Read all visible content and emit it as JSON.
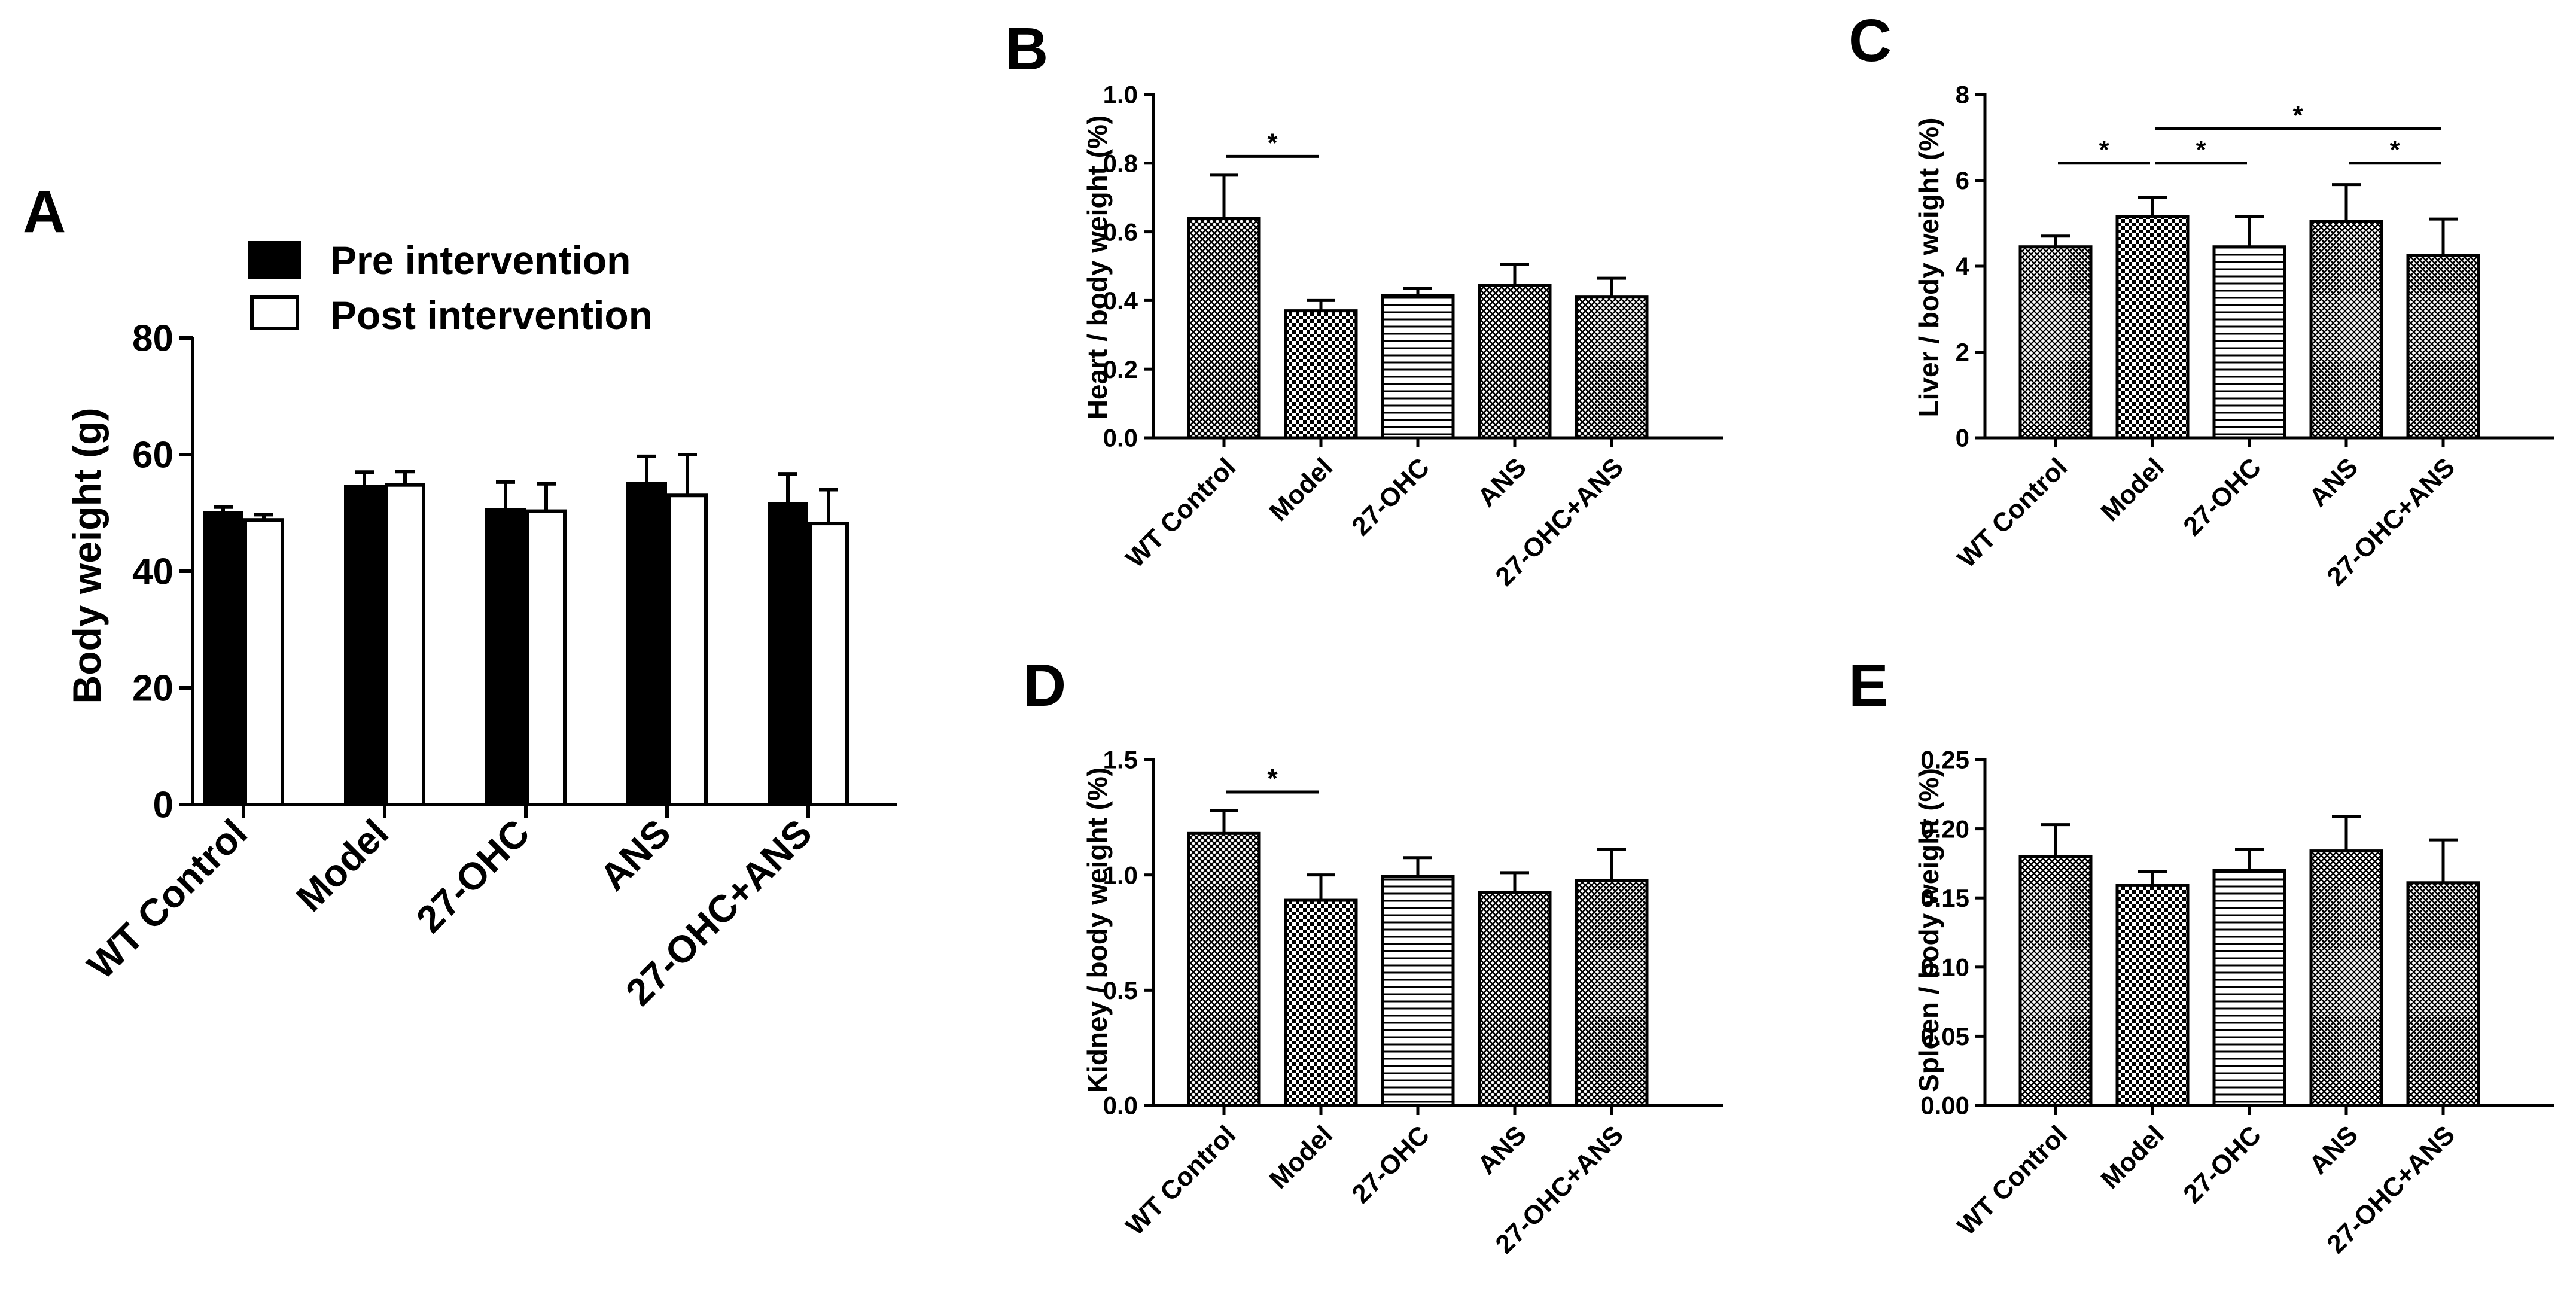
{
  "figure": {
    "categories": [
      "WT Control",
      "Model",
      "27-OHC",
      "ANS",
      "27-OHC+ANS"
    ],
    "patterns": [
      "crosshatch",
      "checker",
      "hlines",
      "crosshatch",
      "crosshatch"
    ]
  },
  "chart_data": [
    {
      "id": "A",
      "panel_label": "A",
      "type": "bar",
      "title": "",
      "xlabel": "",
      "ylabel": "Body weight (g)",
      "ylim": [
        0,
        80
      ],
      "yticks": [
        "0",
        "20",
        "40",
        "60",
        "80"
      ],
      "categories": [
        "WT Control",
        "Model",
        "27-OHC",
        "ANS",
        "27-OHC+ANS"
      ],
      "legend": "top",
      "series": [
        {
          "name": "Pre intervention",
          "fill": "#000000",
          "values": [
            50.0,
            54.5,
            50.5,
            55.0,
            51.5
          ],
          "errors": [
            1.0,
            2.5,
            4.8,
            4.7,
            5.2
          ]
        },
        {
          "name": "Post intervention",
          "fill": "#ffffff",
          "values": [
            48.8,
            54.8,
            50.3,
            53.0,
            48.2
          ],
          "errors": [
            0.9,
            2.3,
            4.7,
            7.0,
            5.8
          ]
        }
      ],
      "significance": []
    },
    {
      "id": "B",
      "panel_label": "B",
      "type": "bar",
      "title": "",
      "xlabel": "",
      "ylabel": "Heart / body weight (%)",
      "ylim": [
        0,
        1.0
      ],
      "yticks": [
        "0.0",
        "0.2",
        "0.4",
        "0.6",
        "0.8",
        "1.0"
      ],
      "categories": [
        "WT Control",
        "Model",
        "27-OHC",
        "ANS",
        "27-OHC+ANS"
      ],
      "values": [
        0.64,
        0.37,
        0.415,
        0.445,
        0.41
      ],
      "errors": [
        0.125,
        0.03,
        0.02,
        0.06,
        0.055
      ],
      "significance": [
        {
          "from": 0,
          "to": 1,
          "y": 0.82,
          "label": "*"
        }
      ]
    },
    {
      "id": "C",
      "panel_label": "C",
      "type": "bar",
      "title": "",
      "xlabel": "",
      "ylabel": "Liver / body weight (%)",
      "ylim": [
        0,
        8
      ],
      "yticks": [
        "0",
        "2",
        "4",
        "6",
        "8"
      ],
      "categories": [
        "WT Control",
        "Model",
        "27-OHC",
        "ANS",
        "27-OHC+ANS"
      ],
      "values": [
        4.45,
        5.15,
        4.45,
        5.05,
        4.25
      ],
      "errors": [
        0.25,
        0.45,
        0.7,
        0.85,
        0.85
      ],
      "significance": [
        {
          "from": 0,
          "to": 1,
          "y": 6.4,
          "label": "*"
        },
        {
          "from": 1,
          "to": 2,
          "y": 6.4,
          "label": "*"
        },
        {
          "from": 1,
          "to": 4,
          "y": 7.2,
          "label": "*"
        },
        {
          "from": 3,
          "to": 4,
          "y": 6.4,
          "label": "*"
        }
      ]
    },
    {
      "id": "D",
      "panel_label": "D",
      "type": "bar",
      "title": "",
      "xlabel": "",
      "ylabel": "Kidney / body weight (%)",
      "ylim": [
        0,
        1.5
      ],
      "yticks": [
        "0.0",
        "0.5",
        "1.0",
        "1.5"
      ],
      "categories": [
        "WT Control",
        "Model",
        "27-OHC",
        "ANS",
        "27-OHC+ANS"
      ],
      "values": [
        1.18,
        0.89,
        0.995,
        0.925,
        0.975
      ],
      "errors": [
        0.1,
        0.11,
        0.08,
        0.085,
        0.135
      ],
      "significance": [
        {
          "from": 0,
          "to": 1,
          "y": 1.36,
          "label": "*"
        }
      ]
    },
    {
      "id": "E",
      "panel_label": "E",
      "type": "bar",
      "title": "",
      "xlabel": "",
      "ylabel": "Spleen / body weight (%)",
      "ylim": [
        0,
        0.25
      ],
      "yticks": [
        "0.00",
        "0.05",
        "0.10",
        "0.15",
        "0.20",
        "0.25"
      ],
      "categories": [
        "WT Control",
        "Model",
        "27-OHC",
        "ANS",
        "27-OHC+ANS"
      ],
      "values": [
        0.18,
        0.159,
        0.17,
        0.184,
        0.161
      ],
      "errors": [
        0.023,
        0.01,
        0.015,
        0.025,
        0.031
      ],
      "significance": []
    }
  ]
}
